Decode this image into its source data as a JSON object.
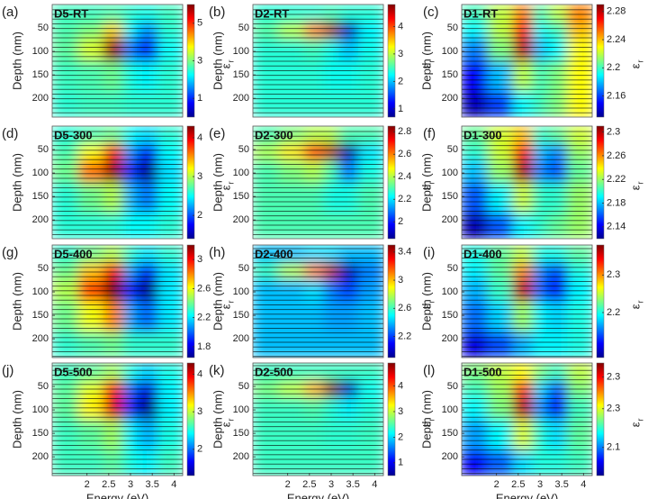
{
  "chart_data": [
    {
      "type": "heatmap",
      "panel": "(a)",
      "title": "D5-RT",
      "ylabel": "Depth (nm)",
      "colorbar_label": "ε",
      "colorbar_label_sub": "r",
      "colormap": "jet",
      "x": [
        1.5,
        2.1,
        2.65,
        3.0,
        3.35,
        3.9
      ],
      "y": [
        20,
        55,
        90,
        150,
        220
      ],
      "z": [
        [
          2.6,
          2.6,
          2.7,
          2.5,
          2.4,
          2.6
        ],
        [
          2.7,
          3.0,
          4.0,
          2.2,
          1.6,
          2.5
        ],
        [
          2.8,
          3.5,
          5.8,
          1.5,
          0.8,
          2.3
        ],
        [
          2.6,
          2.7,
          2.9,
          2.4,
          2.2,
          2.5
        ],
        [
          2.5,
          2.6,
          2.6,
          2.5,
          2.5,
          2.5
        ]
      ],
      "xlim": [
        1.2,
        4.2
      ],
      "ylim": [
        0,
        240
      ],
      "y_inverted": true,
      "yticks": [
        50,
        100,
        150,
        200
      ],
      "clim": [
        0,
        6
      ],
      "cticks": [
        1,
        3,
        5
      ]
    },
    {
      "type": "heatmap",
      "panel": "(b)",
      "title": "D2-RT",
      "ylabel": "Depth (nm)",
      "colorbar_label": "ε",
      "colorbar_label_sub": "r",
      "colormap": "jet",
      "x": [
        1.5,
        2.1,
        2.65,
        3.0,
        3.35,
        3.9
      ],
      "y": [
        20,
        55,
        90,
        150,
        220
      ],
      "z": [
        [
          2.4,
          2.4,
          2.4,
          2.5,
          2.4,
          2.4
        ],
        [
          2.6,
          3.0,
          3.8,
          4.6,
          1.0,
          2.2
        ],
        [
          2.4,
          2.4,
          2.5,
          2.3,
          2.0,
          2.3
        ],
        [
          2.4,
          2.4,
          2.4,
          2.3,
          2.3,
          2.4
        ],
        [
          2.4,
          2.4,
          2.4,
          2.4,
          2.4,
          2.4
        ]
      ],
      "xlim": [
        1.2,
        4.2
      ],
      "ylim": [
        0,
        240
      ],
      "y_inverted": true,
      "yticks": [
        50,
        100,
        150,
        200
      ],
      "clim": [
        0.7,
        4.8
      ],
      "cticks": [
        1,
        2,
        3,
        4
      ]
    },
    {
      "type": "heatmap",
      "panel": "(c)",
      "title": "D1-RT",
      "ylabel": "Depth (nm)",
      "colorbar_label": "ε",
      "colorbar_label_sub": "r",
      "colormap": "jet",
      "x": [
        1.5,
        2.1,
        2.65,
        3.0,
        3.35,
        3.9
      ],
      "y": [
        20,
        55,
        90,
        150,
        220
      ],
      "z": [
        [
          2.2,
          2.22,
          2.25,
          2.2,
          2.22,
          2.25
        ],
        [
          2.19,
          2.22,
          2.27,
          2.19,
          2.2,
          2.24
        ],
        [
          2.17,
          2.21,
          2.28,
          2.18,
          2.19,
          2.23
        ],
        [
          2.15,
          2.18,
          2.22,
          2.2,
          2.21,
          2.23
        ],
        [
          2.14,
          2.16,
          2.19,
          2.2,
          2.21,
          2.23
        ]
      ],
      "xlim": [
        1.2,
        4.2
      ],
      "ylim": [
        0,
        240
      ],
      "y_inverted": true,
      "yticks": [
        50,
        100,
        150,
        200
      ],
      "clim": [
        2.13,
        2.29
      ],
      "cticks": [
        2.16,
        2.2,
        2.24,
        2.28
      ]
    },
    {
      "type": "heatmap",
      "panel": "(d)",
      "title": "D5-300",
      "ylabel": "Depth (nm)",
      "colorbar_label": "ε",
      "colorbar_label_sub": "r",
      "colormap": "jet",
      "x": [
        1.5,
        2.1,
        2.65,
        3.0,
        3.35,
        3.9
      ],
      "y": [
        20,
        55,
        90,
        150,
        220
      ],
      "z": [
        [
          2.6,
          2.7,
          2.8,
          2.5,
          2.4,
          2.6
        ],
        [
          2.7,
          3.2,
          3.8,
          2.2,
          1.8,
          2.5
        ],
        [
          2.8,
          3.6,
          4.2,
          1.9,
          1.5,
          2.4
        ],
        [
          2.6,
          2.8,
          3.0,
          2.3,
          2.1,
          2.5
        ],
        [
          2.6,
          2.6,
          2.6,
          2.5,
          2.5,
          2.6
        ]
      ],
      "xlim": [
        1.2,
        4.2
      ],
      "ylim": [
        0,
        240
      ],
      "y_inverted": true,
      "yticks": [
        50,
        100,
        150,
        200
      ],
      "clim": [
        1.4,
        4.3
      ],
      "cticks": [
        2,
        3,
        4
      ]
    },
    {
      "type": "heatmap",
      "panel": "(e)",
      "title": "D2-300",
      "ylabel": "Depth (nm)",
      "colorbar_label": "ε",
      "colorbar_label_sub": "r",
      "colormap": "jet",
      "x": [
        1.5,
        2.1,
        2.65,
        3.0,
        3.35,
        3.9
      ],
      "y": [
        20,
        55,
        90,
        150,
        220
      ],
      "z": [
        [
          2.3,
          2.35,
          2.4,
          2.4,
          2.3,
          2.3
        ],
        [
          2.4,
          2.5,
          2.7,
          2.8,
          1.9,
          2.2
        ],
        [
          2.3,
          2.35,
          2.4,
          2.3,
          2.1,
          2.25
        ],
        [
          2.3,
          2.3,
          2.3,
          2.25,
          2.25,
          2.3
        ],
        [
          2.3,
          2.3,
          2.3,
          2.3,
          2.3,
          2.3
        ]
      ],
      "xlim": [
        1.2,
        4.2
      ],
      "ylim": [
        0,
        240
      ],
      "y_inverted": true,
      "yticks": [
        50,
        100,
        150,
        200
      ],
      "clim": [
        1.85,
        2.85
      ],
      "cticks": [
        2,
        2.2,
        2.4,
        2.6,
        2.8
      ]
    },
    {
      "type": "heatmap",
      "panel": "(f)",
      "title": "D1-300",
      "ylabel": "Depth (nm)",
      "colorbar_label": "ε",
      "colorbar_label_sub": "r",
      "colormap": "jet",
      "x": [
        1.5,
        2.1,
        2.65,
        3.0,
        3.35,
        3.9
      ],
      "y": [
        20,
        55,
        90,
        150,
        220
      ],
      "z": [
        [
          2.21,
          2.23,
          2.25,
          2.2,
          2.21,
          2.23
        ],
        [
          2.2,
          2.23,
          2.28,
          2.18,
          2.17,
          2.22
        ],
        [
          2.18,
          2.22,
          2.3,
          2.17,
          2.16,
          2.21
        ],
        [
          2.16,
          2.19,
          2.23,
          2.2,
          2.2,
          2.22
        ],
        [
          2.13,
          2.16,
          2.19,
          2.2,
          2.21,
          2.22
        ]
      ],
      "xlim": [
        1.2,
        4.2
      ],
      "ylim": [
        0,
        240
      ],
      "y_inverted": true,
      "yticks": [
        50,
        100,
        150,
        200
      ],
      "clim": [
        2.12,
        2.31
      ],
      "cticks": [
        2.14,
        2.18,
        2.22,
        2.26,
        2.3
      ]
    },
    {
      "type": "heatmap",
      "panel": "(g)",
      "title": "D5-400",
      "ylabel": "Depth (nm)",
      "colorbar_label": "ε",
      "colorbar_label_sub": "r",
      "colormap": "jet",
      "x": [
        1.5,
        2.1,
        2.65,
        3.0,
        3.35,
        3.9
      ],
      "y": [
        20,
        55,
        90,
        150,
        220
      ],
      "z": [
        [
          2.3,
          2.4,
          2.5,
          2.3,
          2.2,
          2.3
        ],
        [
          2.4,
          2.7,
          3.0,
          2.1,
          1.9,
          2.2
        ],
        [
          2.5,
          2.9,
          3.2,
          1.9,
          1.7,
          2.2
        ],
        [
          2.4,
          2.6,
          2.8,
          2.1,
          2.0,
          2.2
        ],
        [
          2.3,
          2.35,
          2.4,
          2.3,
          2.3,
          2.3
        ]
      ],
      "xlim": [
        1.2,
        4.2
      ],
      "ylim": [
        0,
        240
      ],
      "y_inverted": true,
      "yticks": [
        50,
        100,
        150,
        200
      ],
      "clim": [
        1.65,
        3.2
      ],
      "cticks": [
        1.8,
        2.2,
        2.6,
        3
      ]
    },
    {
      "type": "heatmap",
      "panel": "(h)",
      "title": "D2-400",
      "ylabel": "Depth (nm)",
      "colorbar_label": "ε",
      "colorbar_label_sub": "r",
      "colormap": "jet",
      "x": [
        1.5,
        2.1,
        2.65,
        3.0,
        3.35,
        3.9
      ],
      "y": [
        20,
        55,
        90,
        150,
        220
      ],
      "z": [
        [
          2.4,
          2.4,
          2.45,
          2.45,
          2.4,
          2.4
        ],
        [
          2.6,
          2.8,
          3.1,
          3.4,
          2.0,
          2.3
        ],
        [
          2.4,
          2.4,
          2.45,
          2.3,
          2.2,
          2.35
        ],
        [
          2.4,
          2.4,
          2.4,
          2.35,
          2.35,
          2.4
        ],
        [
          2.4,
          2.4,
          2.4,
          2.4,
          2.4,
          2.4
        ]
      ],
      "xlim": [
        1.2,
        4.2
      ],
      "ylim": [
        0,
        240
      ],
      "y_inverted": true,
      "yticks": [
        50,
        100,
        150,
        200
      ],
      "clim": [
        1.9,
        3.5
      ],
      "cticks": [
        2.2,
        2.6,
        3,
        3.4
      ]
    },
    {
      "type": "heatmap",
      "panel": "(i)",
      "title": "D1-400",
      "ylabel": "Depth (nm)",
      "colorbar_label": "ε",
      "colorbar_label_sub": "r",
      "colormap": "jet",
      "x": [
        1.5,
        2.1,
        2.65,
        3.0,
        3.35,
        3.9
      ],
      "y": [
        20,
        55,
        90,
        150,
        220
      ],
      "z": [
        [
          2.2,
          2.22,
          2.25,
          2.2,
          2.2,
          2.22
        ],
        [
          2.19,
          2.22,
          2.3,
          2.16,
          2.14,
          2.2
        ],
        [
          2.17,
          2.21,
          2.36,
          2.15,
          2.12,
          2.19
        ],
        [
          2.15,
          2.18,
          2.24,
          2.19,
          2.18,
          2.2
        ],
        [
          2.11,
          2.14,
          2.17,
          2.19,
          2.19,
          2.2
        ]
      ],
      "xlim": [
        1.2,
        4.2
      ],
      "ylim": [
        0,
        240
      ],
      "y_inverted": true,
      "yticks": [
        50,
        100,
        150,
        200
      ],
      "clim": [
        2.08,
        2.38
      ],
      "cticks": [
        2.2,
        2.3
      ]
    },
    {
      "type": "heatmap",
      "panel": "(j)",
      "title": "D5-500",
      "ylabel": "Depth (nm)",
      "xlabel": "Energy (eV)",
      "colorbar_label": "ε",
      "colorbar_label_sub": "r",
      "colormap": "jet",
      "x": [
        1.5,
        2.1,
        2.65,
        3.0,
        3.35,
        3.9
      ],
      "y": [
        20,
        55,
        90,
        150,
        220
      ],
      "z": [
        [
          2.6,
          2.7,
          2.9,
          2.5,
          2.3,
          2.5
        ],
        [
          2.7,
          3.1,
          3.8,
          2.0,
          1.6,
          2.4
        ],
        [
          2.7,
          3.2,
          4.0,
          1.8,
          1.4,
          2.4
        ],
        [
          2.6,
          2.7,
          2.9,
          2.4,
          2.2,
          2.5
        ],
        [
          2.6,
          2.6,
          2.7,
          2.5,
          2.4,
          2.6
        ]
      ],
      "xlim": [
        1.2,
        4.2
      ],
      "ylim": [
        0,
        240
      ],
      "y_inverted": true,
      "xticks": [
        2,
        2.5,
        3,
        3.5,
        4
      ],
      "yticks": [
        50,
        100,
        150,
        200
      ],
      "clim": [
        1.3,
        4.3
      ],
      "cticks": [
        2,
        3,
        4
      ]
    },
    {
      "type": "heatmap",
      "panel": "(k)",
      "title": "D2-500",
      "ylabel": "Depth (nm)",
      "xlabel": "Energy (eV)",
      "colorbar_label": "ε",
      "colorbar_label_sub": "r",
      "colormap": "jet",
      "x": [
        1.5,
        2.1,
        2.65,
        3.0,
        3.35,
        3.9
      ],
      "y": [
        20,
        55,
        90,
        150,
        220
      ],
      "z": [
        [
          2.4,
          2.4,
          2.4,
          2.4,
          2.4,
          2.4
        ],
        [
          2.7,
          3.0,
          3.6,
          4.8,
          0.8,
          2.2
        ],
        [
          2.4,
          2.4,
          2.5,
          2.3,
          2.1,
          2.3
        ],
        [
          2.4,
          2.4,
          2.4,
          2.35,
          2.35,
          2.4
        ],
        [
          2.4,
          2.4,
          2.4,
          2.4,
          2.4,
          2.4
        ]
      ],
      "xlim": [
        1.2,
        4.2
      ],
      "ylim": [
        0,
        240
      ],
      "y_inverted": true,
      "xticks": [
        2,
        2.5,
        3,
        3.5,
        4
      ],
      "yticks": [
        50,
        100,
        150,
        200
      ],
      "clim": [
        0.5,
        4.9
      ],
      "cticks": [
        1,
        2,
        3,
        4
      ]
    },
    {
      "type": "heatmap",
      "panel": "(l)",
      "title": "D1-500",
      "ylabel": "Depth (nm)",
      "xlabel": "Energy (eV)",
      "colorbar_label": "ε",
      "colorbar_label_sub": "r",
      "colormap": "jet",
      "x": [
        1.5,
        2.1,
        2.65,
        3.0,
        3.35,
        3.9
      ],
      "y": [
        20,
        55,
        90,
        150,
        220
      ],
      "z": [
        [
          2.22,
          2.24,
          2.26,
          2.22,
          2.2,
          2.24
        ],
        [
          2.2,
          2.23,
          2.32,
          2.17,
          2.13,
          2.22
        ],
        [
          2.18,
          2.22,
          2.36,
          2.15,
          2.1,
          2.2
        ],
        [
          2.15,
          2.18,
          2.25,
          2.19,
          2.17,
          2.21
        ],
        [
          2.1,
          2.13,
          2.17,
          2.19,
          2.19,
          2.2
        ]
      ],
      "xlim": [
        1.2,
        4.2
      ],
      "ylim": [
        0,
        240
      ],
      "y_inverted": true,
      "xticks": [
        2,
        2.5,
        3,
        3.5,
        4
      ],
      "yticks": [
        50,
        100,
        150,
        200
      ],
      "clim": [
        2.06,
        2.38
      ],
      "cticks": [
        {
          "value": 2.14,
          "label": "2.1"
        },
        {
          "value": 2.25,
          "label": "2.3"
        },
        {
          "value": 2.34,
          "label": "2.3"
        }
      ]
    }
  ]
}
